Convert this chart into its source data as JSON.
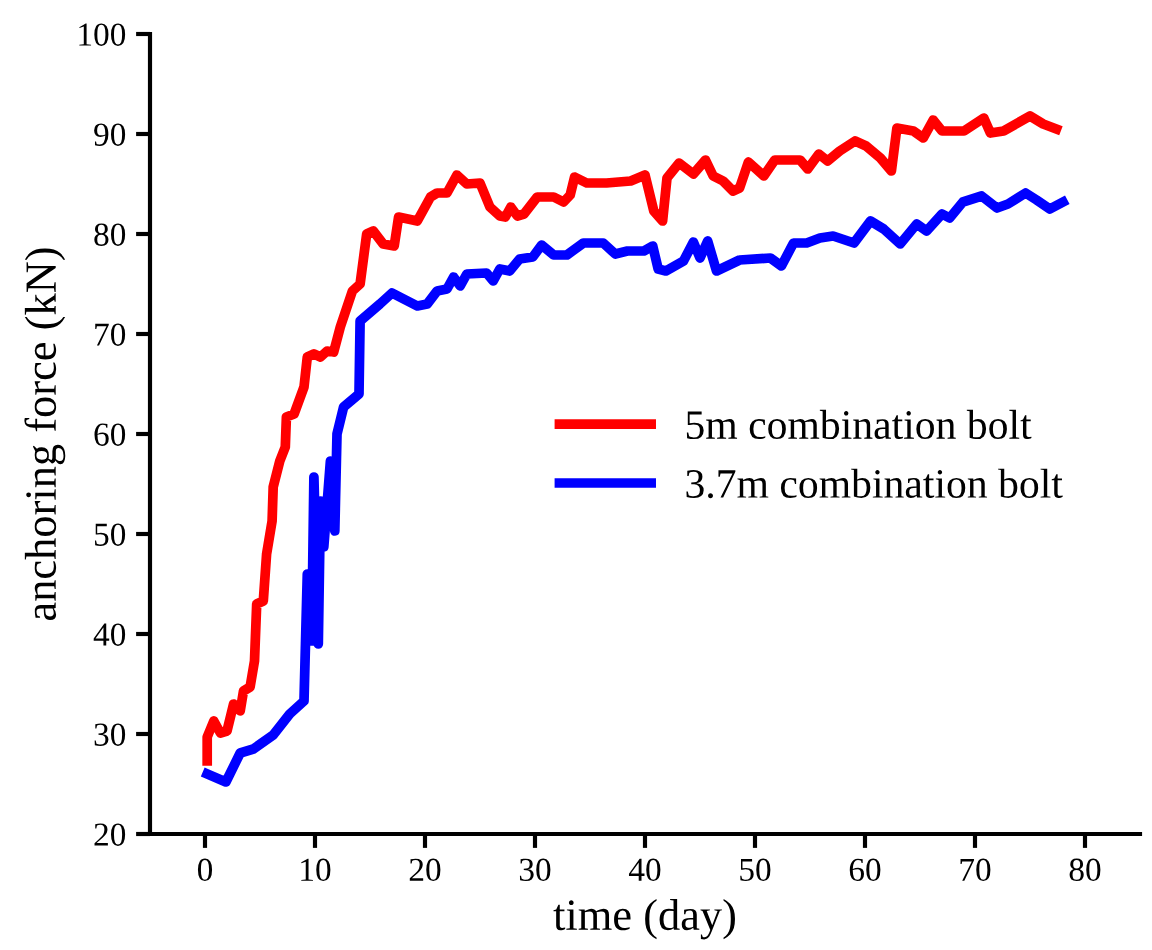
{
  "chart_data": {
    "type": "line",
    "xlabel": "time (day)",
    "ylabel": "anchoring force (kN)",
    "xlim": [
      -5,
      85
    ],
    "ylim": [
      20,
      100
    ],
    "xticks": [
      0,
      10,
      20,
      30,
      40,
      50,
      60,
      70,
      80
    ],
    "yticks": [
      20,
      30,
      40,
      50,
      60,
      70,
      80,
      90,
      100
    ],
    "grid": false,
    "legend": "right",
    "marker": "none",
    "line_style": "solid",
    "series": [
      {
        "name": "5m combination bolt",
        "color": "#ff0000",
        "x": [
          0.2,
          0.2,
          0.8,
          1.4,
          2,
          2.6,
          3.2,
          3.5,
          4.1,
          4.5,
          4.7,
          5.3,
          5.6,
          6.1,
          6.2,
          6.8,
          7.3,
          7.4,
          8.1,
          9,
          9.3,
          9.9,
          10.5,
          11.1,
          11.7,
          12.3,
          13.4,
          14.1,
          14.7,
          15.3,
          16.2,
          17.2,
          17.6,
          19.3,
          20.5,
          21.1,
          22,
          22.9,
          23.8,
          25,
          25.9,
          26.8,
          27.3,
          27.8,
          28.4,
          29,
          30.2,
          31.7,
          32.6,
          33.2,
          33.6,
          34.7,
          36.5,
          38.7,
          40,
          40.8,
          41.6,
          42,
          43.1,
          44.4,
          45.5,
          46.2,
          47.1,
          48,
          48.6,
          49.4,
          50.8,
          51.8,
          54.1,
          54.8,
          55.8,
          56.6,
          57.7,
          59.1,
          60.1,
          61.4,
          62.4,
          62.9,
          64.4,
          65.3,
          66.2,
          67,
          69,
          70.8,
          71.4,
          72.6,
          75,
          76.2,
          77.4
        ],
        "values": [
          27.3,
          29.7,
          31.3,
          30.1,
          30.3,
          33,
          32.3,
          34.3,
          34.7,
          37.3,
          43,
          43.3,
          48,
          51.3,
          54.7,
          57.3,
          58.7,
          61.7,
          62,
          64.7,
          67.7,
          68,
          67.7,
          68.3,
          68.2,
          70.7,
          74.3,
          75,
          80,
          80.3,
          79,
          78.8,
          81.7,
          81.3,
          83.7,
          84.1,
          84.1,
          85.9,
          85,
          85.1,
          82.7,
          81.8,
          81.7,
          82.7,
          81.8,
          82,
          83.7,
          83.7,
          83.2,
          83.9,
          85.7,
          85.1,
          85.1,
          85.3,
          85.9,
          82.3,
          81.3,
          85.6,
          87.1,
          86,
          87.4,
          85.8,
          85.3,
          84.3,
          84.6,
          87.2,
          85.8,
          87.4,
          87.4,
          86.5,
          88,
          87.3,
          88.3,
          89.3,
          88.8,
          87.6,
          86.3,
          90.6,
          90.3,
          89.6,
          91.4,
          90.3,
          90.3,
          91.6,
          90.1,
          90.3,
          91.8,
          91,
          90.5
        ]
      },
      {
        "name": "3.7m combination bolt",
        "color": "#0000ff",
        "x": [
          0.2,
          1.9,
          3.2,
          4.4,
          6.2,
          7.7,
          9,
          9.3,
          9.7,
          9.9,
          10.3,
          10.5,
          10.8,
          11.4,
          11.8,
          12,
          12.6,
          14,
          14.1,
          15.9,
          17,
          19.3,
          20.2,
          21.1,
          22,
          22.6,
          23.2,
          23.8,
          25.6,
          26.2,
          26.8,
          27.7,
          28.6,
          29.8,
          30.6,
          31.7,
          32.9,
          34.4,
          36.2,
          37.3,
          38.4,
          39.9,
          40.7,
          41.2,
          41.9,
          43.5,
          44.4,
          45,
          45.7,
          46.5,
          48.6,
          51.4,
          52.4,
          53.5,
          54.7,
          55.9,
          57.1,
          59,
          60.5,
          61.7,
          63.2,
          64.7,
          65.6,
          67,
          67.7,
          68.9,
          70.6,
          72,
          73,
          74.6,
          75.6,
          76.8,
          78
        ],
        "values": [
          26,
          25.2,
          28.1,
          28.5,
          29.9,
          32,
          33.3,
          46,
          39.3,
          55.7,
          39,
          53.3,
          48.7,
          57.3,
          50.3,
          60,
          62.7,
          64,
          71.3,
          73,
          74.1,
          72.8,
          73,
          74.3,
          74.5,
          75.7,
          74.8,
          76,
          76.1,
          75.3,
          76.5,
          76.3,
          77.5,
          77.7,
          78.9,
          77.9,
          77.9,
          79.1,
          79.1,
          78,
          78.3,
          78.3,
          78.8,
          76.5,
          76.3,
          77.3,
          79.2,
          77.6,
          79.3,
          76.3,
          77.4,
          77.6,
          76.8,
          79.1,
          79.1,
          79.6,
          79.8,
          79.1,
          81.3,
          80.5,
          79,
          81,
          80.3,
          82,
          81.6,
          83.2,
          83.8,
          82.6,
          83,
          84.1,
          83.4,
          82.5,
          83.2
        ]
      }
    ]
  }
}
